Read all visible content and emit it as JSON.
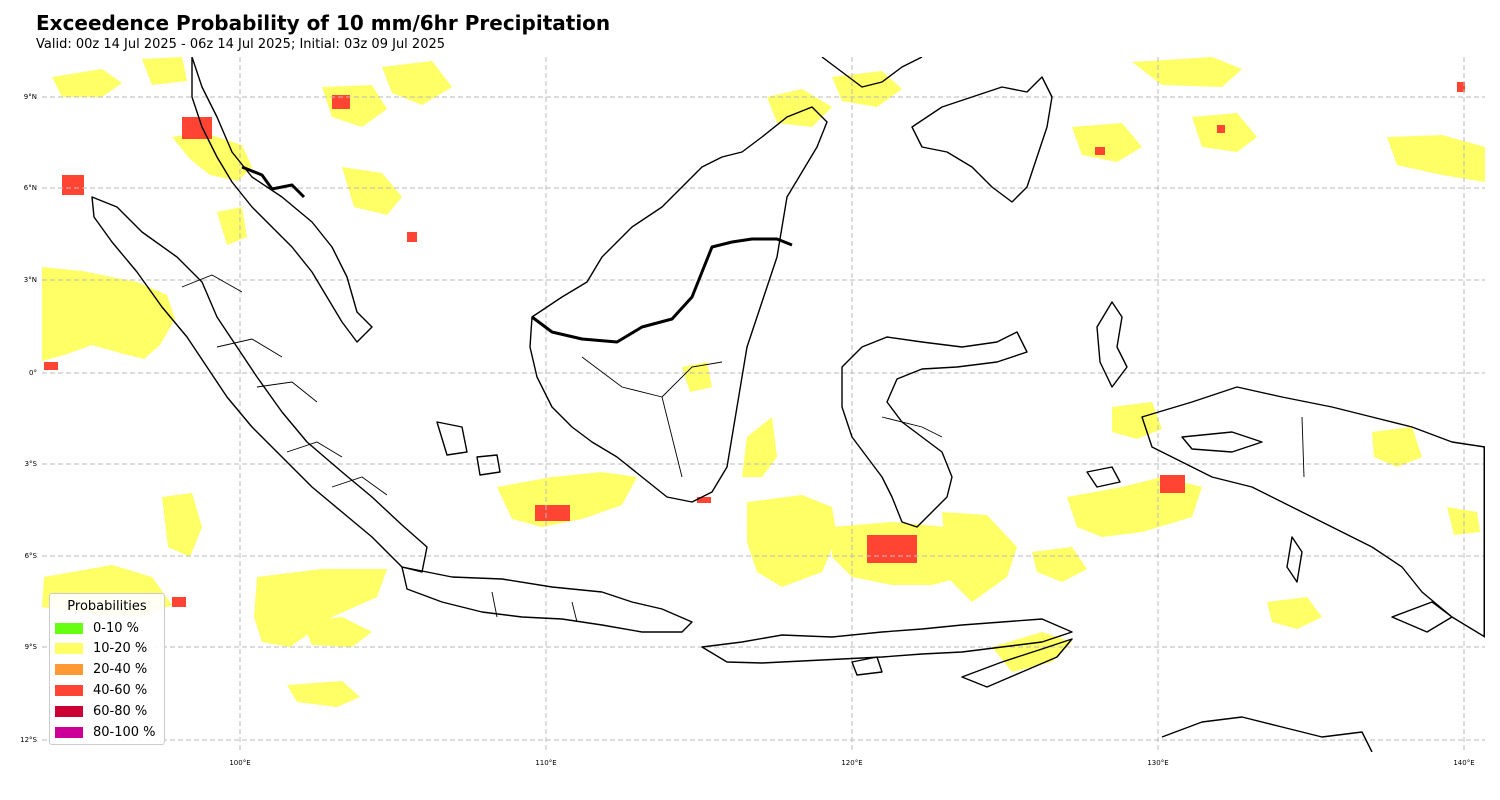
{
  "header": {
    "title": "Exceedence Probability of 10 mm/6hr Precipitation",
    "subtitle": "Valid: 00z 14 Jul 2025 - 06z 14 Jul 2025; Initial: 03z 09 Jul 2025"
  },
  "map": {
    "lat_labels": [
      "9°N",
      "6°N",
      "3°N",
      "0°",
      "3°S",
      "6°S",
      "9°S",
      "12°S"
    ],
    "lon_labels": [
      "100°E",
      "110°E",
      "120°E",
      "130°E",
      "140°E"
    ],
    "lat_values": [
      9,
      6,
      3,
      0,
      -3,
      -6,
      -9,
      -12
    ],
    "lon_values": [
      100,
      110,
      120,
      130,
      140
    ],
    "extent": {
      "lon_min": 93.5,
      "lon_max": 140.7,
      "lat_min": -12.6,
      "lat_max": 10.2
    },
    "gridlines": "dashed"
  },
  "legend": {
    "title": "Probabilities",
    "items": [
      {
        "label": "0-10 %",
        "color": "#66ff11"
      },
      {
        "label": "10-20 %",
        "color": "#ffff66"
      },
      {
        "label": "20-40 %",
        "color": "#ff9933"
      },
      {
        "label": "40-60 %",
        "color": "#ff4433"
      },
      {
        "label": "60-80 %",
        "color": "#cc0033"
      },
      {
        "label": "80-100 %",
        "color": "#cc0099"
      }
    ]
  }
}
